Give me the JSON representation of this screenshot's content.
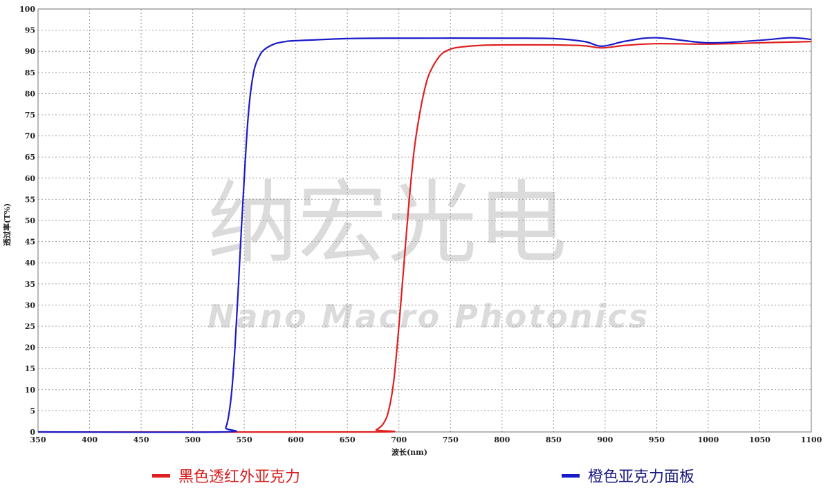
{
  "chart_data": {
    "type": "line",
    "title": "",
    "xlabel": "波长(nm)",
    "ylabel": "透过率(T%)",
    "xlim": [
      350,
      1100
    ],
    "ylim": [
      0,
      100
    ],
    "xticks": [
      350,
      400,
      450,
      500,
      550,
      600,
      650,
      700,
      750,
      800,
      850,
      900,
      950,
      1000,
      1050,
      1100
    ],
    "yticks": [
      0,
      5,
      10,
      15,
      20,
      25,
      30,
      35,
      40,
      45,
      50,
      55,
      60,
      65,
      70,
      75,
      80,
      85,
      90,
      95,
      100
    ],
    "grid": true,
    "legend_position": "bottom",
    "series": [
      {
        "name": "黑色透红外亚克力",
        "color": "#e02020",
        "x": [
          350,
          670,
          678,
          685,
          690,
          695,
          700,
          705,
          710,
          715,
          720,
          725,
          730,
          740,
          750,
          760,
          780,
          800,
          850,
          880,
          897,
          920,
          950,
          1000,
          1050,
          1100
        ],
        "y": [
          0,
          0,
          0.5,
          2,
          5,
          12,
          25,
          40,
          55,
          67,
          75,
          81,
          85,
          89,
          90.5,
          91,
          91.4,
          91.5,
          91.5,
          91.3,
          90.8,
          91.4,
          91.8,
          91.7,
          92,
          92.3
        ]
      },
      {
        "name": "橙色亚克力面板",
        "color": "#1a1ac8",
        "x": [
          350,
          528,
          532,
          535,
          538,
          541,
          544,
          547,
          550,
          553,
          556,
          560,
          565,
          570,
          580,
          590,
          600,
          650,
          700,
          800,
          850,
          880,
          897,
          920,
          950,
          1000,
          1050,
          1080,
          1100
        ],
        "y": [
          0,
          0,
          1,
          4,
          10,
          20,
          33,
          47,
          60,
          72,
          80,
          86,
          89,
          90.5,
          91.8,
          92.3,
          92.5,
          93,
          93.1,
          93.1,
          93,
          92.3,
          91.2,
          92.4,
          93.2,
          92,
          92.6,
          93.2,
          92.8
        ]
      }
    ]
  },
  "watermark": {
    "cn": "纳宏光电",
    "en": "Nano Macro Photonics"
  }
}
